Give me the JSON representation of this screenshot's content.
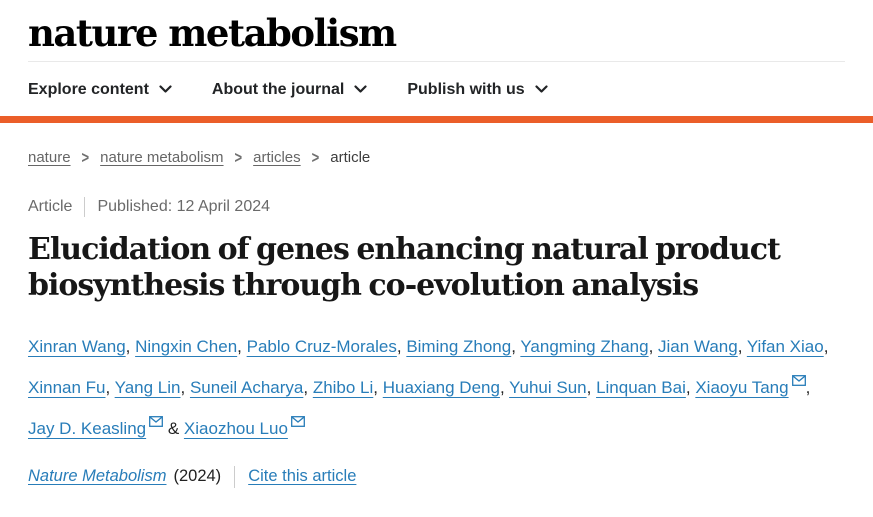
{
  "header": {
    "logo": "nature metabolism",
    "nav": [
      {
        "label": "Explore content"
      },
      {
        "label": "About the journal"
      },
      {
        "label": "Publish with us"
      }
    ]
  },
  "breadcrumb": {
    "separator": ">",
    "items": [
      {
        "label": "nature"
      },
      {
        "label": "nature metabolism"
      },
      {
        "label": "articles"
      },
      {
        "label": "article"
      }
    ]
  },
  "article": {
    "type_label": "Article",
    "published_label": "Published: 12 April 2024",
    "title": "Elucidation of genes enhancing natural product biosynthesis through co-evolution analysis",
    "separator": ", ",
    "last_separator": " & ",
    "authors": [
      {
        "name": "Xinran Wang"
      },
      {
        "name": "Ningxin Chen"
      },
      {
        "name": "Pablo Cruz-Morales"
      },
      {
        "name": "Biming Zhong"
      },
      {
        "name": "Yangming Zhang"
      },
      {
        "name": "Jian Wang"
      },
      {
        "name": "Yifan Xiao"
      },
      {
        "name": "Xinnan Fu"
      },
      {
        "name": "Yang Lin"
      },
      {
        "name": "Suneil Acharya"
      },
      {
        "name": "Zhibo Li"
      },
      {
        "name": "Huaxiang Deng"
      },
      {
        "name": "Yuhui Sun"
      },
      {
        "name": "Linquan Bai"
      },
      {
        "name": "Xiaoyu Tang",
        "email": true
      },
      {
        "name": "Jay D. Keasling",
        "email": true
      },
      {
        "name": "Xiaozhou Luo",
        "email": true
      }
    ],
    "journal": "Nature Metabolism",
    "year": "(2024)",
    "cite_label": "Cite this article"
  },
  "colors": {
    "accent_orange": "#eb5e29",
    "link_blue": "#287db9",
    "breadcrumb_gray": "#666666",
    "meta_gray": "#6a6a6a"
  }
}
